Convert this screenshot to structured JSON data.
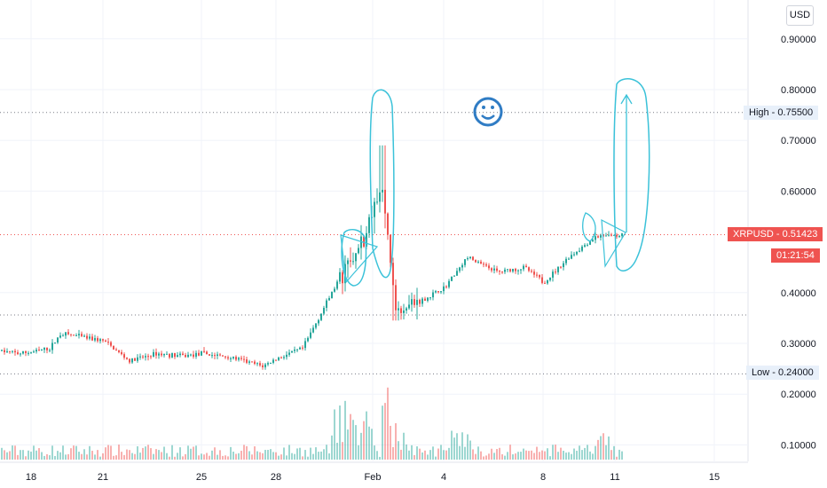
{
  "currency": "USD",
  "chart_data": {
    "type": "candlestick",
    "symbol": "XRPUSD",
    "last_price": "0.51423",
    "countdown": "01:21:54",
    "high_label": "High",
    "high_value": "0.75500",
    "low_label": "Low",
    "low_value": "0.24000",
    "y_ticks": [
      "0.90000",
      "0.80000",
      "0.70000",
      "0.60000",
      "0.40000",
      "0.30000",
      "0.20000",
      "0.10000"
    ],
    "x_ticks": [
      "18",
      "21",
      "25",
      "28",
      "Feb",
      "4",
      "8",
      "11",
      "15"
    ],
    "price_path": [
      [
        "16",
        0.285
      ],
      [
        "17",
        0.28
      ],
      [
        "18",
        0.283
      ],
      [
        "19",
        0.29
      ],
      [
        "20",
        0.32
      ],
      [
        "21",
        0.305
      ],
      [
        "22",
        0.265
      ],
      [
        "23",
        0.28
      ],
      [
        "24",
        0.275
      ],
      [
        "25",
        0.28
      ],
      [
        "26",
        0.272
      ],
      [
        "27",
        0.255
      ],
      [
        "28",
        0.27
      ],
      [
        "29",
        0.29
      ],
      [
        "30",
        0.44
      ],
      [
        "31",
        0.49
      ],
      [
        "Feb 1",
        0.6
      ],
      [
        "Feb 2",
        0.37
      ],
      [
        "Feb 3",
        0.38
      ],
      [
        "Feb 4",
        0.41
      ],
      [
        "Feb 5",
        0.47
      ],
      [
        "Feb 6",
        0.44
      ],
      [
        "Feb 7",
        0.45
      ],
      [
        "Feb 8",
        0.42
      ],
      [
        "Feb 9",
        0.47
      ],
      [
        "Feb 10",
        0.51
      ],
      [
        "Feb 11",
        0.514
      ]
    ],
    "ylim": [
      0.05,
      0.95
    ],
    "grid": true
  }
}
